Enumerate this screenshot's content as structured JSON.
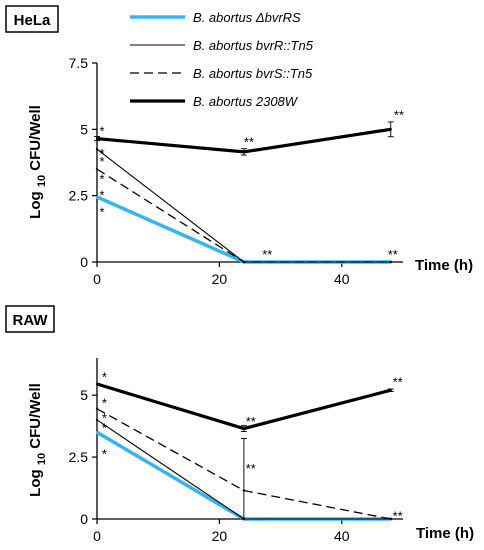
{
  "chart_data": [
    {
      "type": "line",
      "panel_label": "HeLa",
      "xlabel": "Time (h)",
      "ylabel": "Log 10 CFU/Well",
      "ylabel_parts": [
        "Log ",
        "10",
        " CFU/Well"
      ],
      "xlim": [
        0,
        50
      ],
      "ylim": [
        0,
        7.5
      ],
      "x_ticks": [
        "0",
        "20",
        "40"
      ],
      "y_ticks": [
        "0",
        "2.5",
        "5",
        "7.5"
      ],
      "grid": false,
      "legend_position": "top-right",
      "legend": [
        {
          "label": "B. abortus ΔbvrRS",
          "color": "#33b5f0",
          "style": "thick"
        },
        {
          "label": "B. abortus bvrR::Tn5",
          "color": "#000000",
          "style": "thin"
        },
        {
          "label": "B. abortus bvrS::Tn5",
          "color": "#000000",
          "style": "dashed"
        },
        {
          "label": "B. abortus 2308W",
          "color": "#000000",
          "style": "bold"
        }
      ],
      "series": [
        {
          "name": "B. abortus ΔbvrRS",
          "color": "#33b5f0",
          "style": "thick",
          "x": [
            0,
            24,
            48
          ],
          "values": [
            2.45,
            0,
            0
          ]
        },
        {
          "name": "B. abortus bvrR::Tn5",
          "color": "#000000",
          "style": "thin",
          "x": [
            0,
            24,
            48
          ],
          "values": [
            4.25,
            0,
            0
          ]
        },
        {
          "name": "B. abortus bvrS::Tn5",
          "color": "#000000",
          "style": "dashed",
          "x": [
            0,
            24,
            48
          ],
          "values": [
            3.5,
            0,
            0
          ]
        },
        {
          "name": "B. abortus 2308W",
          "color": "#000000",
          "style": "bold",
          "x": [
            0,
            24,
            48
          ],
          "values": [
            4.65,
            4.15,
            5.0
          ],
          "error": [
            0.08,
            0.12,
            0.28
          ]
        }
      ],
      "annotations": [
        {
          "text": "*",
          "x": 0.4,
          "y": 4.95
        },
        {
          "text": "*",
          "x": 0.4,
          "y": 4.1
        },
        {
          "text": "*",
          "x": 0.4,
          "y": 3.8
        },
        {
          "text": "*",
          "x": 0.4,
          "y": 3.15
        },
        {
          "text": "*",
          "x": 0.4,
          "y": 2.55
        },
        {
          "text": "*",
          "x": 0.4,
          "y": 1.9
        },
        {
          "text": "**",
          "x": 24,
          "y": 4.55
        },
        {
          "text": "**",
          "x": 27,
          "y": 0.3
        },
        {
          "text": "**",
          "x": 47.5,
          "y": 0.3
        },
        {
          "text": "**",
          "x": 48.5,
          "y": 5.55
        }
      ]
    },
    {
      "type": "line",
      "panel_label": "RAW",
      "xlabel": "Time (h)",
      "ylabel": "Log 10 CFU/Well",
      "ylabel_parts": [
        "Log ",
        "10",
        " CFU/Well"
      ],
      "xlim": [
        0,
        50
      ],
      "ylim": [
        0,
        6.5
      ],
      "x_ticks": [
        "0",
        "20",
        "40"
      ],
      "y_ticks": [
        "0",
        "2.5",
        "5"
      ],
      "grid": false,
      "series": [
        {
          "name": "B. abortus ΔbvrRS",
          "color": "#33b5f0",
          "style": "thick",
          "x": [
            0,
            24,
            48
          ],
          "values": [
            3.5,
            0,
            0
          ]
        },
        {
          "name": "B. abortus bvrR::Tn5",
          "color": "#000000",
          "style": "thin",
          "x": [
            0,
            24,
            48
          ],
          "values": [
            4.0,
            0,
            0
          ]
        },
        {
          "name": "B. abortus bvrS::Tn5",
          "color": "#000000",
          "style": "dashed",
          "x": [
            0,
            24,
            48
          ],
          "values": [
            4.45,
            1.15,
            0
          ],
          "error": [
            0,
            2.1,
            0
          ]
        },
        {
          "name": "B. abortus 2308W",
          "color": "#000000",
          "style": "bold",
          "x": [
            0,
            24,
            48
          ],
          "values": [
            5.45,
            3.65,
            5.2
          ],
          "error": [
            0,
            0.12,
            0.05
          ]
        }
      ],
      "annotations": [
        {
          "text": "*",
          "x": 0.8,
          "y": 5.75
        },
        {
          "text": "*",
          "x": 0.8,
          "y": 4.7
        },
        {
          "text": "*",
          "x": 0.8,
          "y": 4.1
        },
        {
          "text": "*",
          "x": 0.8,
          "y": 3.7
        },
        {
          "text": "*",
          "x": 0.8,
          "y": 2.65
        },
        {
          "text": "**",
          "x": 24.3,
          "y": 3.95
        },
        {
          "text": "**",
          "x": 24.3,
          "y": 2.05
        },
        {
          "text": "**",
          "x": 48.3,
          "y": 0.15
        },
        {
          "text": "**",
          "x": 48.3,
          "y": 5.55
        }
      ]
    }
  ]
}
